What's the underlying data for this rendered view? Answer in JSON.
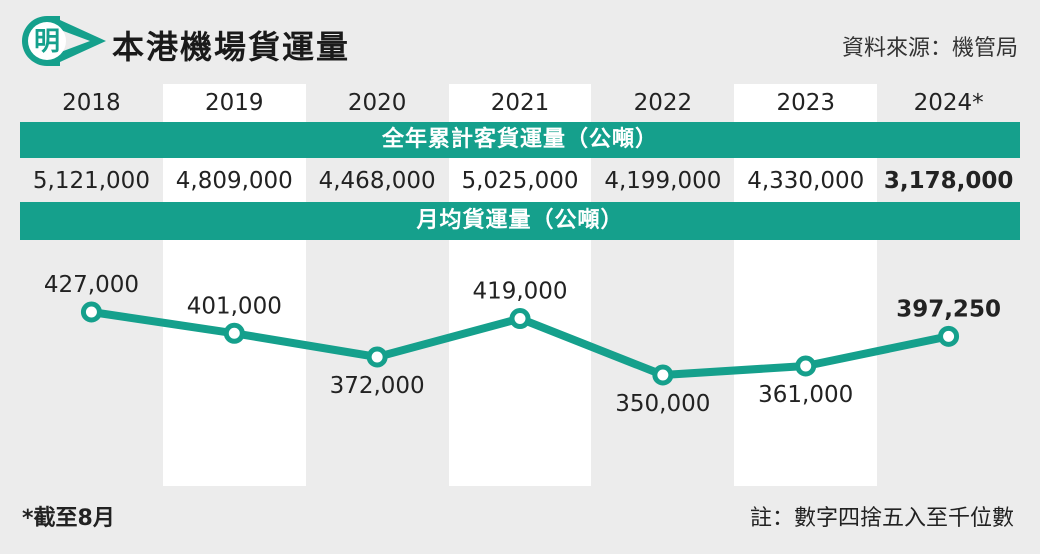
{
  "header": {
    "logo_char": "明",
    "title": "本港機場貨運量",
    "source": "資料來源：機管局"
  },
  "colors": {
    "accent": "#15a08c",
    "background": "#ececec"
  },
  "table": {
    "years": [
      "2018",
      "2019",
      "2020",
      "2021",
      "2022",
      "2023",
      "2024*"
    ],
    "annual_label": "全年累計客貨運量（公噸）",
    "annual_values": [
      "5,121,000",
      "4,809,000",
      "4,468,000",
      "5,025,000",
      "4,199,000",
      "4,330,000",
      "3,178,000"
    ],
    "monthly_label": "月均貨運量（公噸）"
  },
  "chart_data": {
    "type": "line",
    "categories": [
      "2018",
      "2019",
      "2020",
      "2021",
      "2022",
      "2023",
      "2024*"
    ],
    "series": [
      {
        "values": [
          427000,
          401000,
          372000,
          419000,
          350000,
          361000,
          397250
        ]
      }
    ],
    "data_labels": [
      "427,000",
      "401,000",
      "372,000",
      "419,000",
      "350,000",
      "361,000",
      "397,250"
    ],
    "grid": false,
    "legend": "none"
  },
  "footer": {
    "footnote": "*截至8月",
    "note": "註：數字四捨五入至千位數"
  }
}
